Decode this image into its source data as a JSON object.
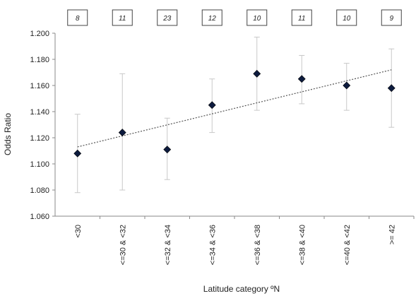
{
  "chart_data": {
    "type": "scatter",
    "title": "",
    "xlabel": "Latitude category ºN",
    "ylabel": "Odds Ratio",
    "categories": [
      "<30",
      "<=30 & <32",
      "<=32 & <34",
      "<=34 & <36",
      "<=36 & <38",
      "<=38 & <40",
      "<=40 & <42",
      ">= 42"
    ],
    "counts": [
      "8",
      "11",
      "23",
      "12",
      "10",
      "11",
      "10",
      "9"
    ],
    "values": [
      1.108,
      1.124,
      1.111,
      1.145,
      1.169,
      1.165,
      1.16,
      1.158
    ],
    "error_low": [
      1.078,
      1.08,
      1.088,
      1.124,
      1.141,
      1.146,
      1.141,
      1.128
    ],
    "error_high": [
      1.138,
      1.169,
      1.135,
      1.165,
      1.197,
      1.183,
      1.177,
      1.188
    ],
    "trendline": {
      "start": 1.113,
      "end": 1.172,
      "style": "dotted"
    },
    "yticks": [
      "1.060",
      "1.080",
      "1.100",
      "1.120",
      "1.140",
      "1.160",
      "1.180",
      "1.200"
    ],
    "ylim": [
      1.06,
      1.2
    ],
    "grid": false,
    "legend": "none",
    "marker_color": "#0d1b3e",
    "errorbar_color": "#c8c8c8",
    "trend_color": "#555555"
  }
}
